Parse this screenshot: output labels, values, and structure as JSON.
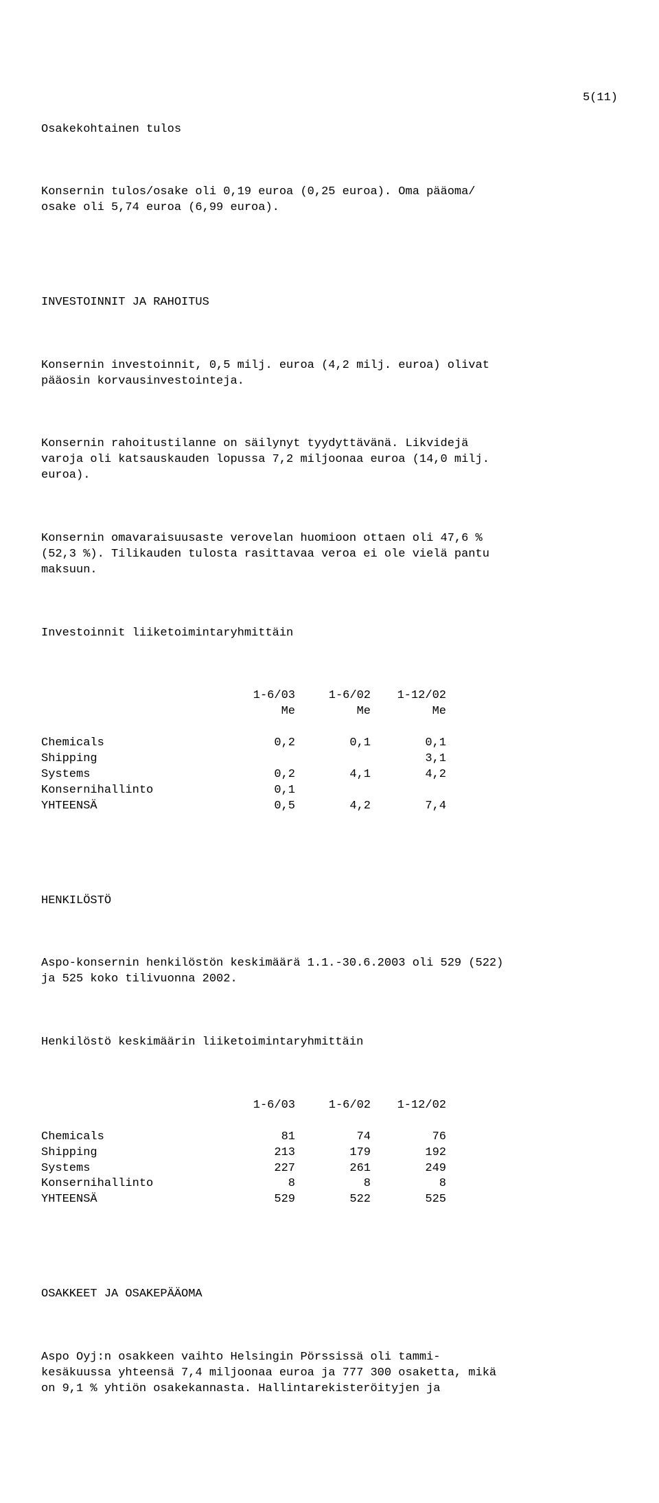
{
  "page_number": "5(11)",
  "section1_heading": "Osakekohtainen tulos",
  "para1": "Konsernin tulos/osake oli 0,19 euroa (0,25 euroa). Oma pääoma/\nosake oli 5,74 euroa (6,99 euroa).",
  "section2_heading": "INVESTOINNIT JA RAHOITUS",
  "para2": "Konsernin investoinnit, 0,5 milj. euroa (4,2 milj. euroa) olivat\npääosin korvausinvestointeja.",
  "para3": "Konsernin rahoitustilanne on säilynyt tyydyttävänä. Likvidejä\nvaroja oli katsauskauden lopussa 7,2 miljoonaa euroa (14,0 milj.\neuroa).",
  "para4": "Konsernin omavaraisuusaste verovelan huomioon ottaen oli 47,6 %\n(52,3 %). Tilikauden tulosta rasittavaa veroa ei ole vielä pantu\nmaksuun.",
  "table1_title": "Investoinnit liiketoimintaryhmittäin",
  "table1": {
    "type": "table",
    "header_periods": [
      "1-6/03",
      "1-6/02",
      "1-12/02"
    ],
    "header_units": [
      "Me",
      "Me",
      "Me"
    ],
    "rows": [
      {
        "label": "Chemicals",
        "c1": "0,2",
        "c2": "0,1",
        "c3": "0,1"
      },
      {
        "label": "Shipping",
        "c1": "",
        "c2": "",
        "c3": "3,1"
      },
      {
        "label": "Systems",
        "c1": "0,2",
        "c2": "4,1",
        "c3": "4,2"
      },
      {
        "label": "Konsernihallinto",
        "c1": "0,1",
        "c2": "",
        "c3": ""
      },
      {
        "label": "YHTEENSÄ",
        "c1": "0,5",
        "c2": "4,2",
        "c3": "7,4"
      }
    ]
  },
  "section3_heading": "HENKILÖSTÖ",
  "para5": "Aspo-konsernin henkilöstön keskimäärä 1.1.-30.6.2003 oli 529 (522)\nja 525 koko tilivuonna 2002.",
  "table2_title": "Henkilöstö keskimäärin liiketoimintaryhmittäin",
  "table2": {
    "type": "table",
    "header_periods": [
      "1-6/03",
      "1-6/02",
      "1-12/02"
    ],
    "rows": [
      {
        "label": "Chemicals",
        "c1": "81",
        "c2": "74",
        "c3": "76"
      },
      {
        "label": "Shipping",
        "c1": "213",
        "c2": "179",
        "c3": "192"
      },
      {
        "label": "Systems",
        "c1": "227",
        "c2": "261",
        "c3": "249"
      },
      {
        "label": "Konsernihallinto",
        "c1": "8",
        "c2": "8",
        "c3": "8"
      },
      {
        "label": "YHTEENSÄ",
        "c1": "529",
        "c2": "522",
        "c3": "525"
      }
    ]
  },
  "section4_heading": "OSAKKEET JA OSAKEPÄÄOMA",
  "para6": "Aspo Oyj:n osakkeen vaihto Helsingin Pörssissä oli tammi-\nkesäkuussa yhteensä 7,4 miljoonaa euroa ja 777 300 osaketta, mikä\non 9,1 % yhtiön osakekannasta. Hallintarekisteröityjen ja"
}
